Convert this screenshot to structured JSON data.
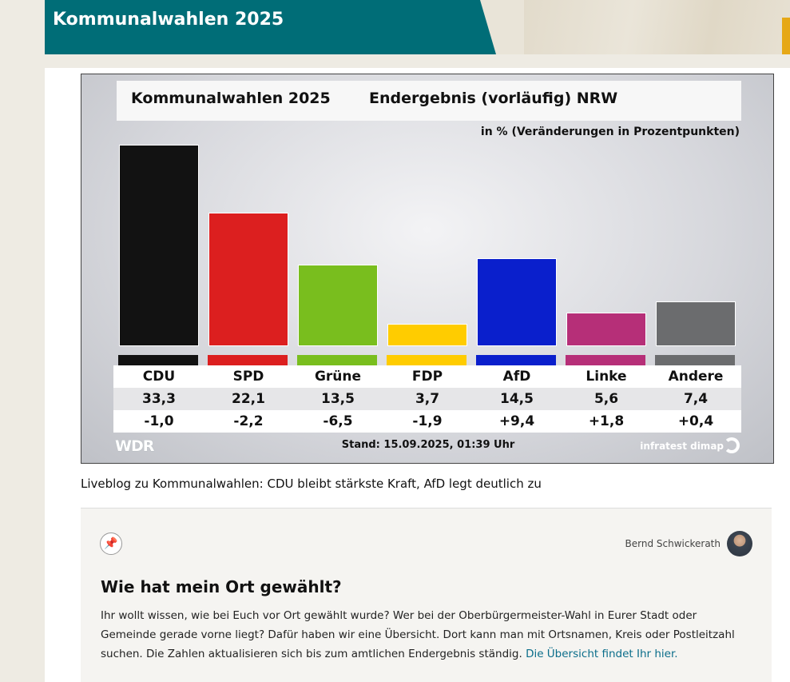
{
  "header": {
    "title": "Kommunalwahlen 2025"
  },
  "graphic": {
    "title_left": "Kommunalwahlen 2025",
    "title_right": "Endergebnis (vorläufig) NRW",
    "unit_note": "in % (Veränderungen in Prozentpunkten)",
    "stand": "Stand: 15.09.2025, 01:39 Uhr",
    "brand_left": "WDR",
    "brand_right": "infratest dimap"
  },
  "chart_data": {
    "type": "bar",
    "title": "Kommunalwahlen 2025 Endergebnis (vorläufig) NRW",
    "categories": [
      "CDU",
      "SPD",
      "Grüne",
      "FDP",
      "AfD",
      "Linke",
      "Andere"
    ],
    "values": [
      33.3,
      22.1,
      13.5,
      3.7,
      14.5,
      5.6,
      7.4
    ],
    "value_labels": [
      "33,3",
      "22,1",
      "13,5",
      "3,7",
      "14,5",
      "5,6",
      "7,4"
    ],
    "changes": [
      "-1,0",
      "-2,2",
      "-6,5",
      "-1,9",
      "+9,4",
      "+1,8",
      "+0,4"
    ],
    "colors": [
      "#121212",
      "#dc1f1f",
      "#79be1e",
      "#ffcc00",
      "#0a1fcc",
      "#b62f78",
      "#6b6c6e"
    ],
    "ylim": [
      0,
      33.3
    ]
  },
  "caption": "Liveblog zu Kommunalwahlen: CDU bleibt stärkste Kraft, AfD legt deutlich zu",
  "blog": {
    "author": "Bernd Schwickerath",
    "heading": "Wie hat mein Ort gewählt?",
    "text": "Ihr wollt wissen, wie bei Euch vor Ort gewählt wurde? Wer bei der Oberbürgermeister-Wahl in Eurer Stadt oder Gemeinde gerade vorne liegt? Dafür haben wir eine Übersicht. Dort kann man mit Ortsnamen, Kreis oder Postleitzahl suchen. Die Zahlen aktualisieren sich bis zum amtlichen Endergebnis ständig. ",
    "link": "Die Übersicht findet Ihr hier.",
    "pin_icon": "pin-icon"
  }
}
